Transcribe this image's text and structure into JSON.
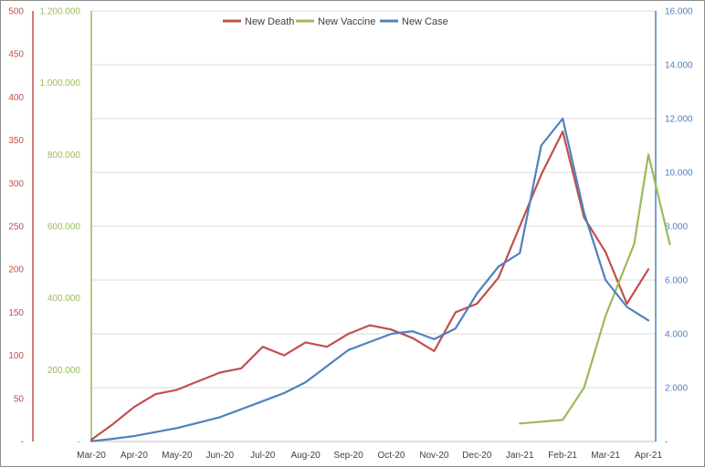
{
  "chart_data": {
    "type": "line",
    "legend": {
      "placement": "top",
      "entries": [
        "New Death",
        "New Vaccine",
        "New Case"
      ]
    },
    "grid": true,
    "x_tick_labels": [
      "Mar-20",
      "Apr-20",
      "May-20",
      "Jun-20",
      "Jul-20",
      "Aug-20",
      "Sep-20",
      "Oct-20",
      "Nov-20",
      "Dec-20",
      "Jan-21",
      "Feb-21",
      "Mar-21",
      "Apr-21"
    ],
    "axes": {
      "left_outer": {
        "series": "New Death",
        "color": "#c0504d",
        "ylim": [
          0,
          500
        ],
        "tick_labels": [
          "-",
          "50",
          "100",
          "150",
          "200",
          "250",
          "300",
          "350",
          "400",
          "450",
          "500"
        ]
      },
      "left_inner": {
        "series": "New Vaccine",
        "color": "#9bbb59",
        "ylim": [
          0,
          1200000
        ],
        "tick_labels": [
          "-",
          "200.000",
          "400.000",
          "600.000",
          "800.000",
          "1.000.000",
          "1.200.000"
        ]
      },
      "right": {
        "series": "New Case",
        "color": "#4f81bd",
        "ylim": [
          0,
          16000
        ],
        "tick_labels": [
          "-",
          "2.000",
          "4.000",
          "6.000",
          "8.000",
          "10.000",
          "12.000",
          "14.000",
          "16.000"
        ]
      }
    },
    "series": [
      {
        "name": "New Death",
        "color": "#c0504d",
        "axis": "left_outer",
        "x": [
          "Mar-20",
          "Mar-20",
          "Apr-20",
          "Apr-20",
          "May-20",
          "May-20",
          "Jun-20",
          "Jun-20",
          "Jul-20",
          "Jul-20",
          "Aug-20",
          "Aug-20",
          "Sep-20",
          "Sep-20",
          "Oct-20",
          "Oct-20",
          "Nov-20",
          "Nov-20",
          "Dec-20",
          "Dec-20",
          "Jan-21",
          "Jan-21",
          "Feb-21",
          "Feb-21",
          "Mar-21",
          "Mar-21",
          "Apr-21"
        ],
        "values": [
          2,
          20,
          40,
          55,
          60,
          70,
          80,
          85,
          110,
          100,
          115,
          110,
          125,
          135,
          130,
          120,
          105,
          150,
          160,
          190,
          250,
          310,
          360,
          260,
          220,
          160,
          200
        ]
      },
      {
        "name": "New Vaccine",
        "color": "#9bbb59",
        "axis": "left_inner",
        "x": [
          "Jan-21",
          "Feb-21",
          "Feb-21",
          "Mar-21",
          "Mar-21",
          "Mar-21",
          "Apr-21",
          "Apr-21"
        ],
        "values": [
          50000,
          60000,
          150000,
          350000,
          450000,
          550000,
          800000,
          550000
        ]
      },
      {
        "name": "New Case",
        "color": "#4f81bd",
        "axis": "right",
        "x": [
          "Mar-20",
          "Mar-20",
          "Apr-20",
          "Apr-20",
          "May-20",
          "May-20",
          "Jun-20",
          "Jun-20",
          "Jul-20",
          "Jul-20",
          "Aug-20",
          "Aug-20",
          "Sep-20",
          "Sep-20",
          "Oct-20",
          "Oct-20",
          "Nov-20",
          "Nov-20",
          "Dec-20",
          "Dec-20",
          "Jan-21",
          "Jan-21",
          "Feb-21",
          "Feb-21",
          "Mar-21",
          "Mar-21",
          "Apr-21"
        ],
        "values": [
          10,
          100,
          200,
          350,
          500,
          700,
          900,
          1200,
          1500,
          1800,
          2200,
          2800,
          3400,
          3700,
          4000,
          4100,
          3800,
          4200,
          5500,
          6500,
          7000,
          11000,
          12000,
          8500,
          6000,
          5000,
          4500
        ]
      }
    ]
  }
}
